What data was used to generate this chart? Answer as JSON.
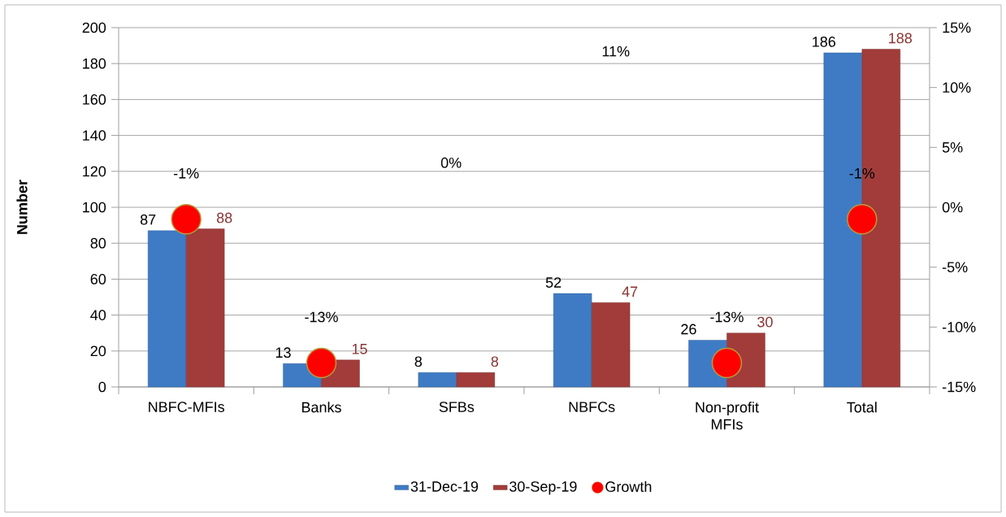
{
  "chart_data": {
    "type": "bar",
    "ylabel": "Number",
    "categories": [
      "NBFC-MFIs",
      "Banks",
      "SFBs",
      "NBFCs",
      "Non-profit MFIs",
      "Total"
    ],
    "series": [
      {
        "name": "31-Dec-19",
        "color": "#3f7bc4",
        "values": [
          87,
          13,
          8,
          52,
          26,
          186
        ],
        "value_labels": [
          "87",
          "13",
          "8",
          "52",
          "26",
          "186"
        ]
      },
      {
        "name": "30-Sep-19",
        "color": "#a13c3a",
        "values": [
          88,
          15,
          8,
          47,
          30,
          188
        ],
        "value_labels": [
          "88",
          "15",
          "8",
          "47",
          "30",
          "188"
        ]
      },
      {
        "name": "Growth",
        "type": "scatter",
        "axis": "y2",
        "marker": "circle",
        "color": "#ff0000",
        "values": [
          -1,
          -13,
          null,
          null,
          -13,
          -1
        ],
        "value_labels": [
          "-1%",
          "-13%",
          null,
          null,
          "-13%",
          "-1%"
        ]
      }
    ],
    "ylim": [
      0,
      200
    ],
    "yticks": [
      0,
      20,
      40,
      60,
      80,
      100,
      120,
      140,
      160,
      180,
      200
    ],
    "y2lim": [
      -15,
      15
    ],
    "y2ticks": [
      {
        "value": -15,
        "label": "-15%"
      },
      {
        "value": -10,
        "label": "-10%"
      },
      {
        "value": -5,
        "label": "-5%"
      },
      {
        "value": 0,
        "label": "0%"
      },
      {
        "value": 5,
        "label": "5%"
      },
      {
        "value": 10,
        "label": "10%"
      },
      {
        "value": 15,
        "label": "15%"
      }
    ],
    "grid": "y",
    "legend": "bottom",
    "annotations": [
      "0%",
      "11%"
    ]
  }
}
